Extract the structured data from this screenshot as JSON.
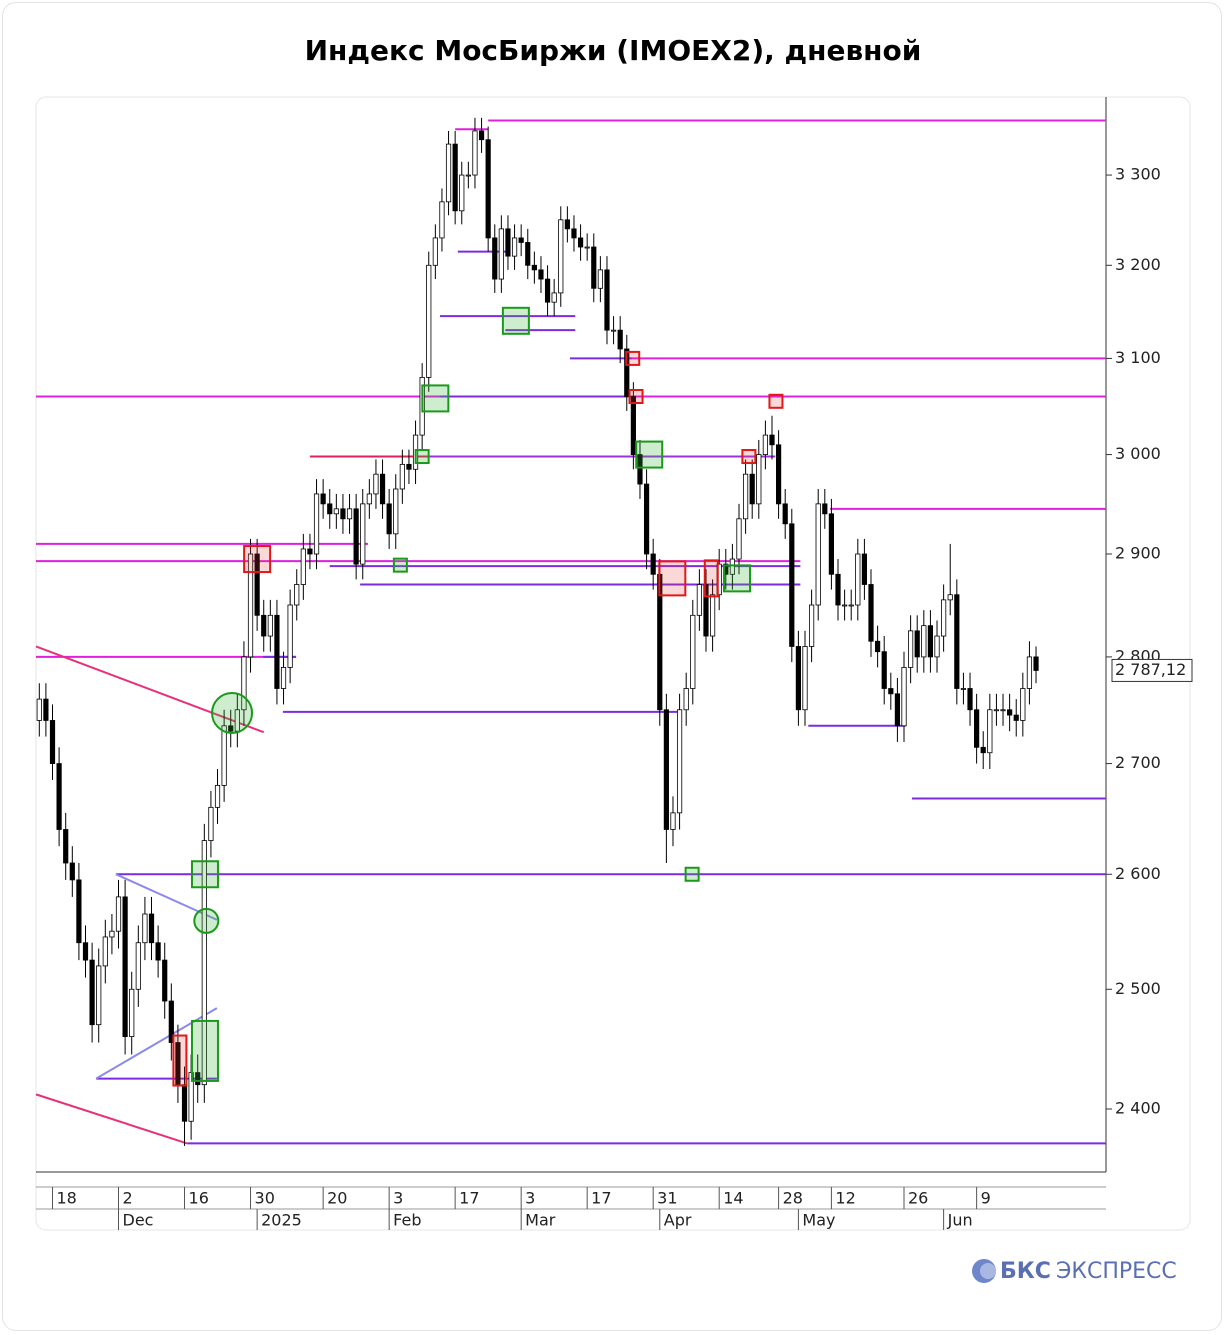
{
  "chart_data": {
    "type": "candlestick",
    "title": "Индекс МосБиржи (IMOEX2), дневной",
    "log_scale": true,
    "ylim": [
      2349,
      3389
    ],
    "xlim": [
      -0.5,
      161.6
    ],
    "yticks": [
      {
        "value": 2400,
        "label": "2 400"
      },
      {
        "value": 2500,
        "label": "2 500"
      },
      {
        "value": 2600,
        "label": "2 600"
      },
      {
        "value": 2700,
        "label": "2 700"
      },
      {
        "value": 2800,
        "label": "2 800"
      },
      {
        "value": 2900,
        "label": "2 900"
      },
      {
        "value": 3000,
        "label": "3 000"
      },
      {
        "value": 3100,
        "label": "3 100"
      },
      {
        "value": 3200,
        "label": "3 200"
      },
      {
        "value": 3300,
        "label": "3 300"
      }
    ],
    "xticks": [
      {
        "value": 2,
        "label": "18"
      },
      {
        "value": 12,
        "label": "2"
      },
      {
        "value": 22,
        "label": "16"
      },
      {
        "value": 32,
        "label": "30"
      },
      {
        "value": 43,
        "label": "20"
      },
      {
        "value": 53,
        "label": "3"
      },
      {
        "value": 63,
        "label": "17"
      },
      {
        "value": 73,
        "label": "3"
      },
      {
        "value": 83,
        "label": "17"
      },
      {
        "value": 93,
        "label": "31"
      },
      {
        "value": 103,
        "label": "14"
      },
      {
        "value": 112,
        "label": "28"
      },
      {
        "value": 120,
        "label": "12"
      },
      {
        "value": 131,
        "label": "26"
      },
      {
        "value": 142,
        "label": "9"
      }
    ],
    "month_ticks": [
      {
        "value": 12,
        "label": "Dec"
      },
      {
        "value": 33,
        "label": "2025"
      },
      {
        "value": 53,
        "label": "Feb"
      },
      {
        "value": 73,
        "label": "Mar"
      },
      {
        "value": 94,
        "label": "Apr"
      },
      {
        "value": 115,
        "label": "May"
      },
      {
        "value": 137,
        "label": "Jun"
      }
    ],
    "up_color": "#ffffff",
    "down_color": "#000000",
    "open": [
      2740,
      2760,
      2740,
      2700,
      2640,
      2610,
      2595,
      2540,
      2525,
      2470,
      2520,
      2545,
      2550,
      2580,
      2460,
      2500,
      2540,
      2565,
      2540,
      2525,
      2490,
      2455,
      2420,
      2390,
      2430,
      2420,
      2630,
      2660,
      2680,
      2735,
      2730,
      2750,
      2800,
      2900,
      2840,
      2820,
      2840,
      2770,
      2790,
      2850,
      2870,
      2905,
      2900,
      2960,
      2950,
      2940,
      2945,
      2935,
      2945,
      2890,
      2950,
      2960,
      2980,
      2950,
      2920,
      2965,
      2990,
      2985,
      3020,
      3080,
      3200,
      3230,
      3270,
      3335,
      3260,
      3300,
      3300,
      3350,
      3340,
      3230,
      3185,
      3240,
      3210,
      3230,
      3225,
      3200,
      3195,
      3185,
      3160,
      3170,
      3250,
      3240,
      3230,
      3220,
      3220,
      3175,
      3195,
      3130,
      3130,
      3110,
      3060,
      3000,
      2970,
      2900,
      2880,
      2750,
      2640,
      2655,
      2750,
      2770,
      2840,
      2870,
      2820,
      2860,
      2890,
      2880,
      2895,
      2935,
      2980,
      2950,
      3000,
      3020,
      3010,
      2950,
      2930,
      2810,
      2750,
      2810,
      2850,
      2950,
      2940,
      2880,
      2850,
      2850,
      2850,
      2900,
      2870,
      2815,
      2805,
      2770,
      2765,
      2735,
      2790,
      2825,
      2800,
      2830,
      2800,
      2820,
      2855,
      2860,
      2770,
      2770,
      2750,
      2715,
      2710,
      2750,
      2750,
      2750,
      2745,
      2740,
      2770,
      2800
    ],
    "high": [
      2775,
      2775,
      2755,
      2715,
      2655,
      2625,
      2610,
      2555,
      2540,
      2535,
      2560,
      2565,
      2595,
      2595,
      2515,
      2555,
      2580,
      2580,
      2555,
      2540,
      2505,
      2470,
      2435,
      2445,
      2445,
      2645,
      2675,
      2695,
      2750,
      2750,
      2765,
      2815,
      2915,
      2915,
      2855,
      2855,
      2855,
      2805,
      2865,
      2885,
      2920,
      2920,
      2975,
      2975,
      2965,
      2960,
      2960,
      2960,
      2960,
      2965,
      2975,
      2995,
      2995,
      2965,
      2980,
      3005,
      3005,
      3035,
      3095,
      3215,
      3245,
      3285,
      3350,
      3350,
      3315,
      3315,
      3365,
      3365,
      3355,
      3245,
      3255,
      3255,
      3245,
      3245,
      3240,
      3215,
      3210,
      3200,
      3185,
      3265,
      3265,
      3255,
      3245,
      3235,
      3235,
      3210,
      3210,
      3145,
      3145,
      3125,
      3075,
      3015,
      2985,
      2915,
      2895,
      2765,
      2670,
      2765,
      2785,
      2855,
      2885,
      2885,
      2875,
      2905,
      2905,
      2910,
      2950,
      2995,
      2995,
      3015,
      3035,
      3040,
      3025,
      2965,
      2945,
      2825,
      2825,
      2865,
      2965,
      2965,
      2955,
      2895,
      2865,
      2865,
      2915,
      2915,
      2885,
      2830,
      2820,
      2785,
      2780,
      2805,
      2840,
      2840,
      2845,
      2845,
      2835,
      2870,
      2910,
      2875,
      2785,
      2785,
      2765,
      2730,
      2765,
      2765,
      2765,
      2765,
      2760,
      2785,
      2815,
      2810
    ],
    "low": [
      2725,
      2725,
      2685,
      2625,
      2595,
      2580,
      2525,
      2510,
      2455,
      2455,
      2505,
      2530,
      2535,
      2445,
      2445,
      2485,
      2525,
      2525,
      2510,
      2475,
      2440,
      2405,
      2370,
      2375,
      2405,
      2405,
      2615,
      2645,
      2665,
      2715,
      2715,
      2735,
      2785,
      2825,
      2805,
      2805,
      2755,
      2755,
      2775,
      2835,
      2855,
      2885,
      2885,
      2935,
      2925,
      2925,
      2920,
      2920,
      2875,
      2875,
      2935,
      2945,
      2935,
      2905,
      2905,
      2950,
      2970,
      2970,
      3005,
      3065,
      3185,
      3215,
      3255,
      3245,
      3245,
      3285,
      3285,
      3325,
      3215,
      3170,
      3170,
      3195,
      3195,
      3210,
      3185,
      3180,
      3170,
      3145,
      3145,
      3155,
      3225,
      3215,
      3205,
      3205,
      3160,
      3160,
      3115,
      3115,
      3095,
      3045,
      2985,
      2955,
      2885,
      2865,
      2735,
      2610,
      2625,
      2640,
      2735,
      2755,
      2825,
      2805,
      2805,
      2845,
      2865,
      2865,
      2880,
      2920,
      2935,
      2935,
      2985,
      2995,
      2935,
      2915,
      2795,
      2735,
      2735,
      2795,
      2835,
      2925,
      2865,
      2835,
      2835,
      2835,
      2835,
      2855,
      2800,
      2790,
      2755,
      2750,
      2720,
      2720,
      2775,
      2785,
      2785,
      2785,
      2785,
      2805,
      2840,
      2755,
      2755,
      2735,
      2700,
      2695,
      2695,
      2735,
      2735,
      2730,
      2725,
      2725,
      2755,
      2775
    ],
    "close": [
      2760,
      2740,
      2700,
      2640,
      2610,
      2595,
      2540,
      2525,
      2470,
      2520,
      2545,
      2550,
      2580,
      2460,
      2500,
      2540,
      2565,
      2540,
      2525,
      2490,
      2455,
      2420,
      2390,
      2430,
      2420,
      2630,
      2660,
      2680,
      2735,
      2730,
      2750,
      2800,
      2900,
      2840,
      2820,
      2840,
      2770,
      2790,
      2850,
      2870,
      2905,
      2900,
      2960,
      2950,
      2940,
      2945,
      2935,
      2945,
      2890,
      2950,
      2960,
      2980,
      2950,
      2920,
      2965,
      2990,
      2985,
      3020,
      3080,
      3200,
      3230,
      3270,
      3335,
      3260,
      3300,
      3300,
      3350,
      3340,
      3230,
      3185,
      3240,
      3210,
      3230,
      3225,
      3200,
      3195,
      3185,
      3160,
      3170,
      3250,
      3240,
      3230,
      3220,
      3220,
      3175,
      3195,
      3130,
      3130,
      3110,
      3060,
      3000,
      2970,
      2900,
      2880,
      2750,
      2640,
      2655,
      2750,
      2770,
      2840,
      2870,
      2820,
      2860,
      2890,
      2880,
      2895,
      2935,
      2980,
      2950,
      3000,
      3020,
      3010,
      2950,
      2930,
      2810,
      2750,
      2810,
      2850,
      2950,
      2940,
      2880,
      2850,
      2850,
      2850,
      2900,
      2870,
      2815,
      2805,
      2770,
      2765,
      2735,
      2790,
      2825,
      2800,
      2830,
      2800,
      2820,
      2855,
      2860,
      2770,
      2770,
      2750,
      2715,
      2710,
      2750,
      2750,
      2750,
      2745,
      2740,
      2770,
      2800,
      2787.12
    ],
    "last_price": {
      "value": 2787.12,
      "label": "2 787,12"
    },
    "levels": [
      {
        "price": 3362,
        "from": 68,
        "to": 161.6,
        "color": "#e020e0"
      },
      {
        "price": 3352,
        "from": 63,
        "to": 68,
        "color": "#e020e0"
      },
      {
        "price": 3100,
        "from": 89.8,
        "to": 161.6,
        "color": "#e020e0"
      },
      {
        "price": 3100,
        "from": 80.4,
        "to": 89.8,
        "color": "#7b2be0"
      },
      {
        "price": 3060,
        "from": -0.5,
        "to": 161.6,
        "color": "#e020e0"
      },
      {
        "price": 3060,
        "from": 60.7,
        "to": 90.4,
        "color": "#7b2be0"
      },
      {
        "price": 2998,
        "from": 41,
        "to": 59,
        "color": "#e0205a"
      },
      {
        "price": 2998,
        "from": 59,
        "to": 111.5,
        "color": "#9b30e0"
      },
      {
        "price": 2945,
        "from": 119.8,
        "to": 161.6,
        "color": "#e020e0"
      },
      {
        "price": 2910,
        "from": -0.5,
        "to": 49.8,
        "color": "#e020e0"
      },
      {
        "price": 2893,
        "from": -0.5,
        "to": 115.3,
        "color": "#e020e0"
      },
      {
        "price": 2888,
        "from": 44,
        "to": 115.3,
        "color": "#7b2be0"
      },
      {
        "price": 2870,
        "from": 48.6,
        "to": 115.3,
        "color": "#7b2be0"
      },
      {
        "price": 2800,
        "from": -0.5,
        "to": 38.9,
        "color": "#e020e0"
      },
      {
        "price": 2800,
        "from": 33.9,
        "to": 38.9,
        "color": "#7b2be0"
      },
      {
        "price": 2748,
        "from": 36.9,
        "to": 97.1,
        "color": "#7b2be0"
      },
      {
        "price": 2735,
        "from": 116.5,
        "to": 131.2,
        "color": "#7b2be0"
      },
      {
        "price": 2668,
        "from": 132.2,
        "to": 161.6,
        "color": "#7b2be0"
      },
      {
        "price": 2600,
        "from": 11.6,
        "to": 161.6,
        "color": "#7b2be0"
      },
      {
        "price": 2372,
        "from": 22.4,
        "to": 161.6,
        "color": "#7b2be0"
      },
      {
        "price": 3215,
        "from": 63.4,
        "to": 71.3,
        "color": "#7b2be0"
      },
      {
        "price": 3145,
        "from": 60.7,
        "to": 81.2,
        "color": "#7b2be0"
      },
      {
        "price": 3130,
        "from": 70.6,
        "to": 81.2,
        "color": "#7b2be0"
      },
      {
        "price": 2425,
        "from": 8.6,
        "to": 26.9,
        "color": "#7b2be0"
      }
    ],
    "trendlines": [
      {
        "start": [
          -0.5,
          2810
        ],
        "end": [
          34,
          2729
        ],
        "color": "#e8307a"
      },
      {
        "start": [
          -0.5,
          2412
        ],
        "end": [
          22.4,
          2372
        ],
        "color": "#e8307a"
      },
      {
        "start": [
          11.6,
          2600
        ],
        "end": [
          26.9,
          2560
        ],
        "color": "#8a8ae8"
      },
      {
        "start": [
          8.6,
          2425
        ],
        "end": [
          26.9,
          2484
        ],
        "color": "#8a8ae8"
      }
    ],
    "signals": [
      {
        "index": 60,
        "price": 3058,
        "side": "buy",
        "kind": "box"
      },
      {
        "index": 72.2,
        "price": 3140,
        "side": "buy",
        "kind": "box"
      },
      {
        "index": 92.4,
        "price": 3000,
        "side": "buy",
        "kind": "box"
      },
      {
        "index": 105.7,
        "price": 2876,
        "side": "buy",
        "kind": "box"
      },
      {
        "index": 54.7,
        "price": 2889,
        "side": "buy",
        "kind": "small"
      },
      {
        "index": 58,
        "price": 2998,
        "side": "buy",
        "kind": "small"
      },
      {
        "index": 98.9,
        "price": 2600,
        "side": "buy",
        "kind": "small"
      },
      {
        "index": 25.1,
        "price": 2600,
        "side": "buy",
        "kind": "box"
      },
      {
        "index": 25.1,
        "price": 2448,
        "side": "buy",
        "kind": "tall"
      },
      {
        "index": 29.2,
        "price": 2747,
        "side": "buy",
        "kind": "circle"
      },
      {
        "index": 25.3,
        "price": 2559,
        "side": "buy",
        "kind": "small-circle"
      },
      {
        "index": 33,
        "price": 2895,
        "side": "sell",
        "kind": "box"
      },
      {
        "index": 89.9,
        "price": 3100,
        "side": "sell",
        "kind": "small"
      },
      {
        "index": 90.4,
        "price": 3060,
        "side": "sell",
        "kind": "small"
      },
      {
        "index": 95.9,
        "price": 2876,
        "side": "sell",
        "kind": "wide"
      },
      {
        "index": 101.8,
        "price": 2876,
        "side": "sell",
        "kind": "narrow"
      },
      {
        "index": 107.5,
        "price": 2998,
        "side": "sell",
        "kind": "small"
      },
      {
        "index": 111.6,
        "price": 3055,
        "side": "sell",
        "kind": "small"
      },
      {
        "index": 21.3,
        "price": 2440,
        "side": "sell",
        "kind": "narrow-tall"
      }
    ]
  },
  "brand": [
    "БКС",
    "ЭКСПРЕСС"
  ]
}
